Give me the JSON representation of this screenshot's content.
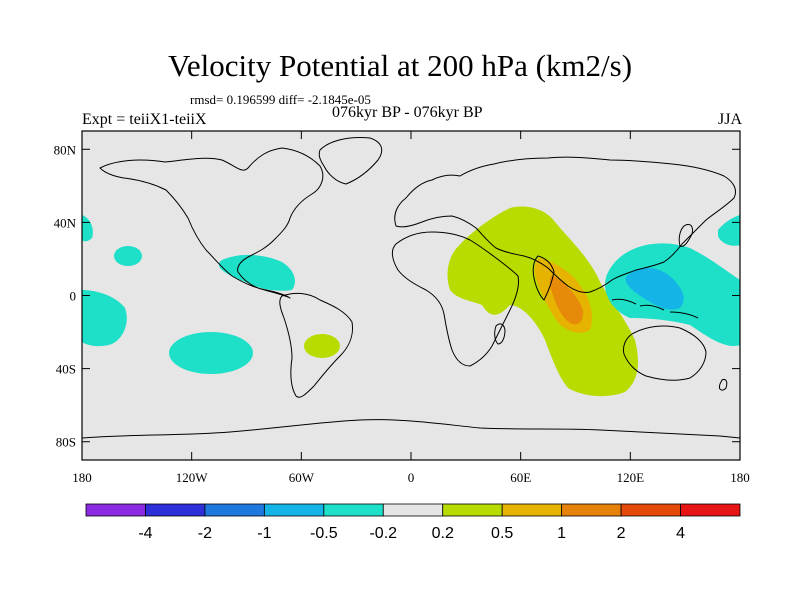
{
  "title": "Velocity Potential at 200 hPa (km2/s)",
  "stats": "rmsd= 0.196599 diff= -2.1845e-05",
  "expt": "Expt = teiiX1-teiiX",
  "period": "076kyr BP - 076kyr BP",
  "season": "JJA",
  "map": {
    "lon_range": [
      -180,
      180
    ],
    "lat_range": [
      -90,
      90
    ],
    "lat_ticks": [
      {
        "lat": 80,
        "label": "80N"
      },
      {
        "lat": 40,
        "label": "40N"
      },
      {
        "lat": 0,
        "label": "0"
      },
      {
        "lat": -40,
        "label": "40S"
      },
      {
        "lat": -80,
        "label": "80S"
      }
    ],
    "lon_ticks": [
      {
        "lon": -180,
        "label": "180"
      },
      {
        "lon": -120,
        "label": "120W"
      },
      {
        "lon": -60,
        "label": "60W"
      },
      {
        "lon": 0,
        "label": "0"
      },
      {
        "lon": 60,
        "label": "60E"
      },
      {
        "lon": 120,
        "label": "120E"
      },
      {
        "lon": 180,
        "label": "180"
      }
    ]
  },
  "colorbar": {
    "colors": [
      "#8a2be2",
      "#2d2fd8",
      "#1e78e0",
      "#14b4e6",
      "#1ee0c8",
      "#e6e6e6",
      "#b8dc00",
      "#e6b400",
      "#e6820a",
      "#e64a0a",
      "#e61414"
    ],
    "labels": [
      "-4",
      "-2",
      "-1",
      "-0.5",
      "-0.2",
      "0.2",
      "0.5",
      "1",
      "2",
      "4"
    ]
  },
  "colors": {
    "neutral": "#e6e6e6",
    "teal": "#1ee0c8",
    "cyan": "#14b4e6",
    "lime": "#b8dc00",
    "gold": "#e6b400",
    "orange": "#e6820a"
  }
}
